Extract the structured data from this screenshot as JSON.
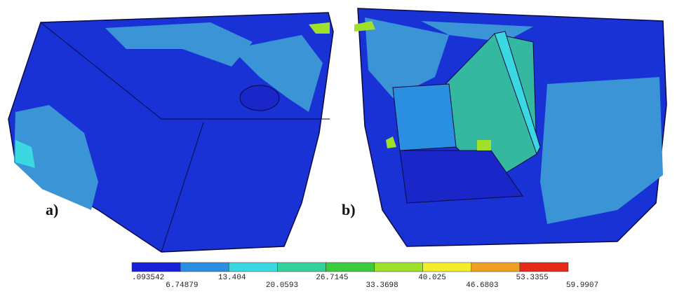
{
  "panels": [
    {
      "label": "a)"
    },
    {
      "label": "b)"
    }
  ],
  "colorbar": {
    "colors": [
      "#1a1fd8",
      "#2a8fe0",
      "#3ad8e0",
      "#34d29a",
      "#3acc3a",
      "#9fe02a",
      "#f2ee2a",
      "#f0a020",
      "#e82a1a"
    ],
    "ticks": [
      ".093542",
      "6.74879",
      "13.404",
      "20.0593",
      "26.7145",
      "33.3698",
      "40.025",
      "46.6803",
      "53.3355",
      "59.9907"
    ]
  }
}
